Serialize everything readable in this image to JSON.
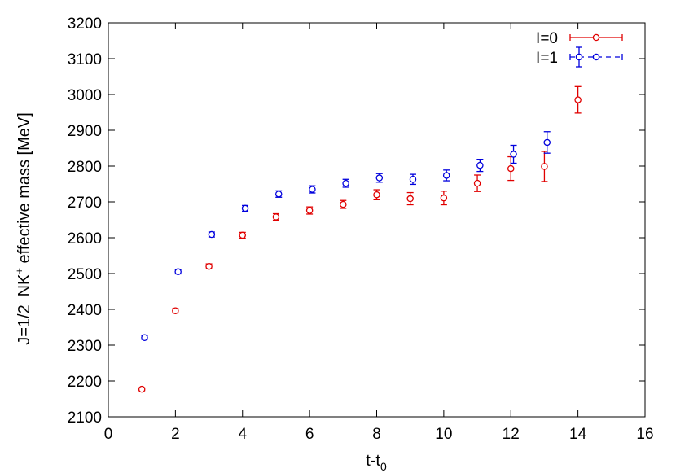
{
  "chart_data": {
    "type": "scatter",
    "title": "",
    "xlabel": "t-t",
    "xlabel_subscript": "0",
    "ylabel_parts": {
      "prefix": "J=1/2",
      "prefix_sup": "-",
      "middle": " NK",
      "middle_sup": "+",
      "suffix": " effective mass [MeV]"
    },
    "xlim": [
      0,
      16
    ],
    "ylim": [
      2100,
      3200
    ],
    "x_ticks": [
      0,
      2,
      4,
      6,
      8,
      10,
      12,
      14,
      16
    ],
    "y_ticks": [
      2100,
      2200,
      2300,
      2400,
      2500,
      2600,
      2700,
      2800,
      2900,
      3000,
      3100,
      3200
    ],
    "grid": false,
    "legend_position": "top-right",
    "reference_line": {
      "y": 2708,
      "style": "dashed",
      "color": "#000000"
    },
    "series": [
      {
        "name": "I=0",
        "color": "#e00000",
        "marker": "open-circle",
        "points": [
          {
            "x": 1,
            "y": 2177,
            "err": 4
          },
          {
            "x": 2,
            "y": 2396,
            "err": 6
          },
          {
            "x": 3,
            "y": 2520,
            "err": 7
          },
          {
            "x": 4,
            "y": 2607,
            "err": 8
          },
          {
            "x": 5,
            "y": 2658,
            "err": 9
          },
          {
            "x": 6,
            "y": 2676,
            "err": 10
          },
          {
            "x": 7,
            "y": 2693,
            "err": 11
          },
          {
            "x": 8,
            "y": 2720,
            "err": 14
          },
          {
            "x": 9,
            "y": 2709,
            "err": 17
          },
          {
            "x": 10,
            "y": 2711,
            "err": 19
          },
          {
            "x": 11,
            "y": 2752,
            "err": 23
          },
          {
            "x": 12,
            "y": 2793,
            "err": 33
          },
          {
            "x": 13,
            "y": 2799,
            "err": 42
          },
          {
            "x": 14,
            "y": 2985,
            "err": 37
          }
        ]
      },
      {
        "name": "I=1",
        "color": "#0000dd",
        "marker": "open-circle",
        "points": [
          {
            "x": 1.08,
            "y": 2321,
            "err": 5
          },
          {
            "x": 2.08,
            "y": 2505,
            "err": 6
          },
          {
            "x": 3.08,
            "y": 2609,
            "err": 7
          },
          {
            "x": 4.08,
            "y": 2682,
            "err": 8
          },
          {
            "x": 5.08,
            "y": 2722,
            "err": 9
          },
          {
            "x": 6.08,
            "y": 2735,
            "err": 10
          },
          {
            "x": 7.08,
            "y": 2752,
            "err": 11
          },
          {
            "x": 8.08,
            "y": 2767,
            "err": 12
          },
          {
            "x": 9.08,
            "y": 2763,
            "err": 14
          },
          {
            "x": 10.08,
            "y": 2774,
            "err": 15
          },
          {
            "x": 11.08,
            "y": 2802,
            "err": 17
          },
          {
            "x": 12.08,
            "y": 2833,
            "err": 25
          },
          {
            "x": 13.08,
            "y": 2866,
            "err": 30
          }
        ]
      }
    ]
  }
}
